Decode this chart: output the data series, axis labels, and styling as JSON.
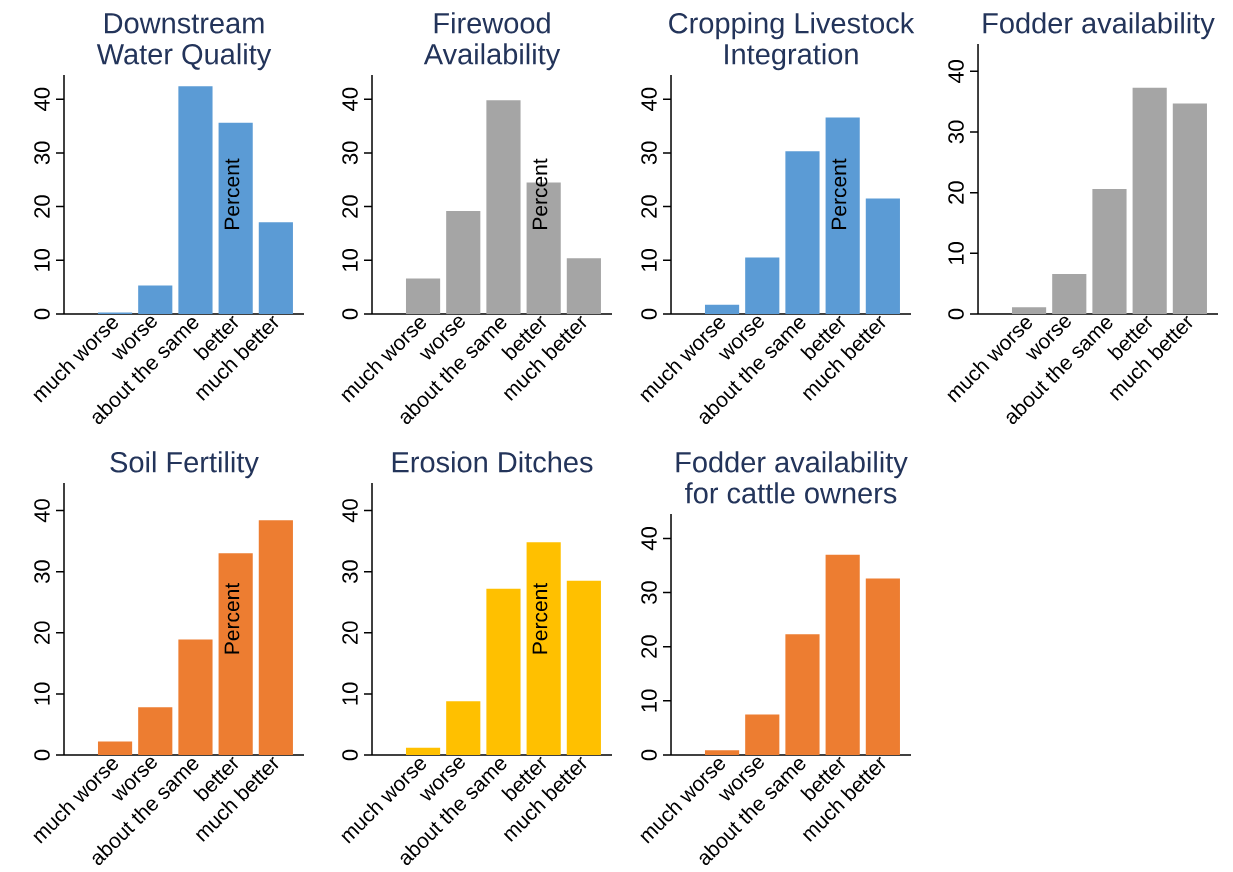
{
  "chart_data": [
    {
      "type": "bar",
      "title": "Downstream Water Quality",
      "ylabel": "Percent",
      "categories": [
        "much worse",
        "worse",
        "about the same",
        "better",
        "much better"
      ],
      "values": [
        0.3,
        5.3,
        42.4,
        35.6,
        17.1
      ],
      "color": "#5b9bd5",
      "ylim": [
        0,
        44.5
      ],
      "yticks": [
        0,
        10,
        20,
        30,
        40
      ]
    },
    {
      "type": "bar",
      "title": "Firewood Availability",
      "ylabel": "Percent",
      "categories": [
        "much worse",
        "worse",
        "about the same",
        "better",
        "much better"
      ],
      "values": [
        6.6,
        19.2,
        39.8,
        24.5,
        10.4
      ],
      "color": "#a5a5a5",
      "ylim": [
        0,
        44.5
      ],
      "yticks": [
        0,
        10,
        20,
        30,
        40
      ]
    },
    {
      "type": "bar",
      "title": "Cropping Livestock Integration",
      "ylabel": "Percent",
      "categories": [
        "much worse",
        "worse",
        "about the same",
        "better",
        "much better"
      ],
      "values": [
        1.7,
        10.5,
        30.3,
        36.6,
        21.5
      ],
      "color": "#5b9bd5",
      "ylim": [
        0,
        44.5
      ],
      "yticks": [
        0,
        10,
        20,
        30,
        40
      ]
    },
    {
      "type": "bar",
      "title": "Fodder availability",
      "categories": [
        "much worse",
        "worse",
        "about the same",
        "better",
        "much better"
      ],
      "values": [
        1.1,
        6.6,
        20.6,
        37.3,
        34.7
      ],
      "color": "#a5a5a5",
      "ylim": [
        0,
        44.5
      ],
      "yticks": [
        0,
        10,
        20,
        30,
        40
      ]
    },
    {
      "type": "bar",
      "title": "Soil Fertility",
      "ylabel": "Percent",
      "categories": [
        "much worse",
        "worse",
        "about the same",
        "better",
        "much better"
      ],
      "values": [
        2.2,
        7.8,
        18.9,
        33.0,
        38.4
      ],
      "color": "#ed7d31",
      "ylim": [
        0,
        44.5
      ],
      "yticks": [
        0,
        10,
        20,
        30,
        40
      ]
    },
    {
      "type": "bar",
      "title": "Erosion Ditches",
      "ylabel": "Percent",
      "categories": [
        "much worse",
        "worse",
        "about the same",
        "better",
        "much better"
      ],
      "values": [
        1.2,
        8.8,
        27.2,
        34.8,
        28.5
      ],
      "color": "#ffc000",
      "ylim": [
        0,
        44.5
      ],
      "yticks": [
        0,
        10,
        20,
        30,
        40
      ]
    },
    {
      "type": "bar",
      "title": "Fodder availability for cattle owners",
      "categories": [
        "much worse",
        "worse",
        "about the same",
        "better",
        "much better"
      ],
      "values": [
        0.9,
        7.5,
        22.3,
        37.0,
        32.6
      ],
      "color": "#ed7d31",
      "ylim": [
        0,
        44.5
      ],
      "yticks": [
        0,
        10,
        20,
        30,
        40
      ]
    }
  ]
}
